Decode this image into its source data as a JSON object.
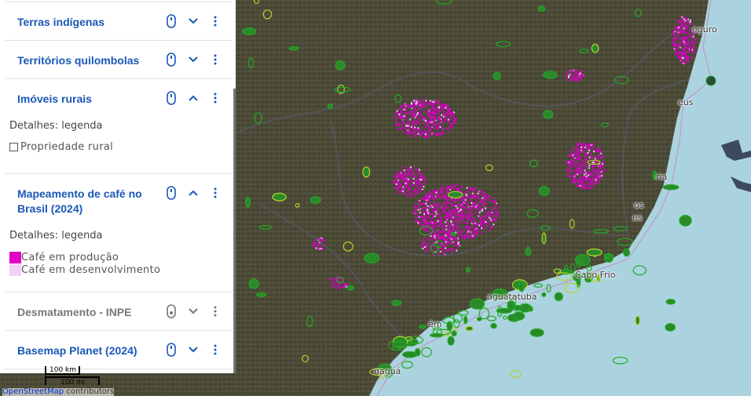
{
  "layers": [
    {
      "title": "Terras indígenas",
      "expanded": false,
      "enabled": true
    },
    {
      "title": "Territórios quilombolas",
      "expanded": false,
      "enabled": true
    },
    {
      "title": "Imóveis rurais",
      "expanded": true,
      "enabled": true,
      "details": "Detalhes: legenda",
      "legend": [
        {
          "label": "Propriedade rural",
          "color": "#ffffff",
          "outline": "#555555"
        }
      ]
    },
    {
      "title": "Mapeamento de café no Brasil (2024)",
      "expanded": true,
      "enabled": true,
      "details": "Detalhes: legenda",
      "legend": [
        {
          "label": "Café em produção",
          "color": "#e000c8"
        },
        {
          "label": "Café em desenvolvimento",
          "color": "#f0d0f8"
        }
      ]
    },
    {
      "title": "Desmatamento - INPE",
      "expanded": false,
      "enabled": false
    },
    {
      "title": "Basemap Planet (2024)",
      "expanded": false,
      "enabled": true
    }
  ],
  "icons": {
    "toggle": "mouse-toggle-icon",
    "expand": "chevron-down-icon",
    "collapse": "chevron-up-icon",
    "menu": "kebab-menu-icon"
  },
  "colors": {
    "accent": "#1a58b8",
    "ocean": "#aad3df",
    "coffee": "#e000c8",
    "protected": "#22aa22"
  },
  "map_labels": [
    "eguro",
    "eus",
    "ria",
    "os",
    "es",
    "Cabo Frio",
    "aguatatuba",
    "ém",
    "naguá"
  ],
  "scale": {
    "km": "100 km",
    "mi": "100 mi"
  },
  "attribution": {
    "link": "OpenStreetMap",
    "text": " contributors"
  }
}
